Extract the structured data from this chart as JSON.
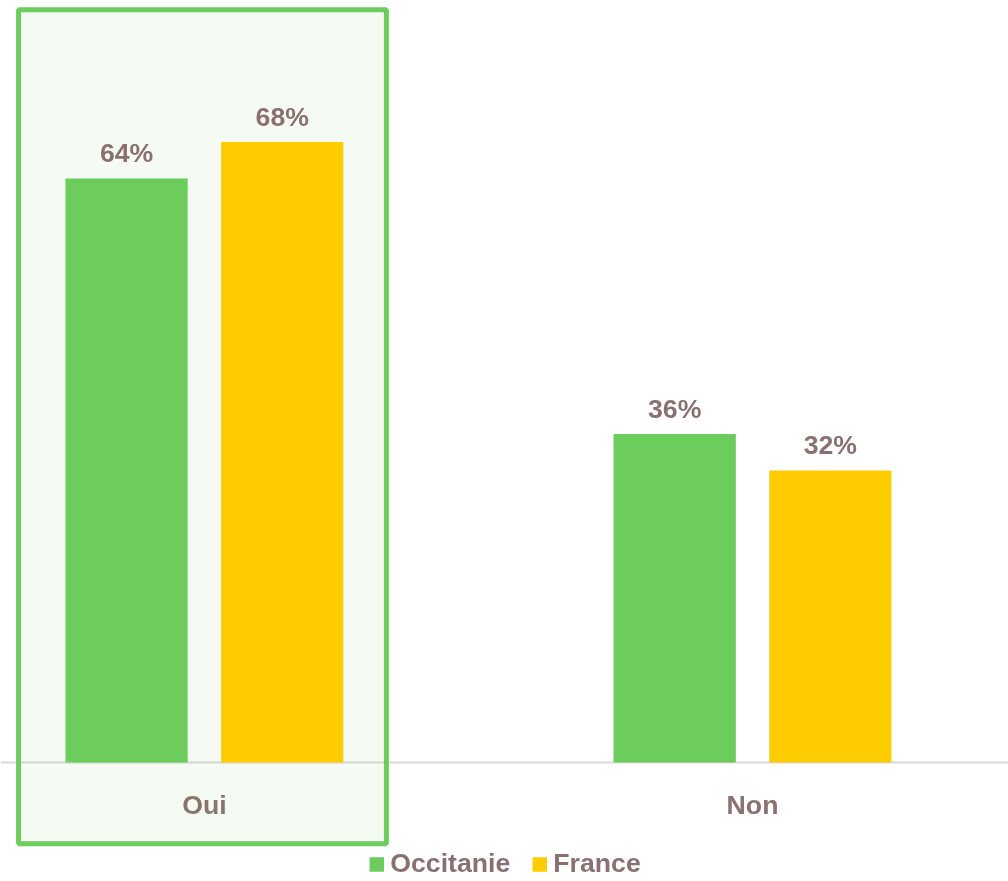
{
  "chart_data": {
    "type": "bar",
    "categories": [
      "Oui",
      "Non"
    ],
    "series": [
      {
        "name": "Occitanie",
        "color": "#6ccc5c",
        "values": [
          64,
          36
        ],
        "value_labels": [
          "64%",
          "36%"
        ]
      },
      {
        "name": "France",
        "color": "#ffcc00",
        "values": [
          68,
          32
        ],
        "value_labels": [
          "68%",
          "32%"
        ]
      }
    ],
    "bands": [
      {
        "axis": "x",
        "from": "Oui",
        "to": "Oui",
        "color": "#6ccc5c"
      }
    ],
    "grid": false,
    "legend": "bottom"
  }
}
